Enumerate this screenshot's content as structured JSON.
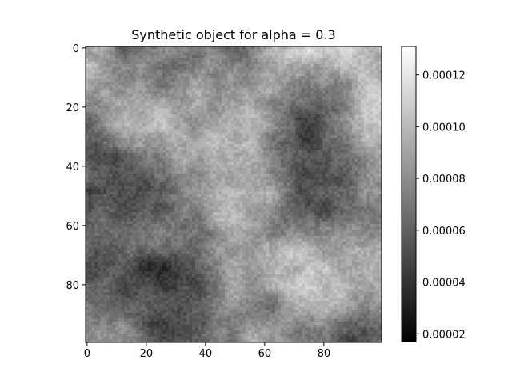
{
  "chart_data": {
    "type": "heatmap",
    "title": "Synthetic object for alpha = 0.3",
    "xlabel": "",
    "ylabel": "",
    "grid_size": [
      100,
      100
    ],
    "xlim": [
      -0.5,
      99.5
    ],
    "ylim": [
      99.5,
      -0.5
    ],
    "x_ticks": [
      0,
      20,
      40,
      60,
      80
    ],
    "y_ticks": [
      0,
      20,
      40,
      60,
      80
    ],
    "x_tick_labels": [
      "0",
      "20",
      "40",
      "60",
      "80"
    ],
    "y_tick_labels": [
      "0",
      "20",
      "40",
      "60",
      "80"
    ],
    "colormap": "gray",
    "color_range": [
      1.7e-05,
      0.000131
    ],
    "colorbar_ticks": [
      2e-05,
      4e-05,
      6e-05,
      8e-05,
      0.0001,
      0.00012
    ],
    "colorbar_tick_labels": [
      "0.00002",
      "0.00004",
      "0.00006",
      "0.00008",
      "0.00010",
      "0.00012"
    ],
    "field_description": "smooth random field (fractal noise), values mostly 0.00004–0.00011; darker regions near rows 30–50 left side and rows 80–95 center"
  }
}
